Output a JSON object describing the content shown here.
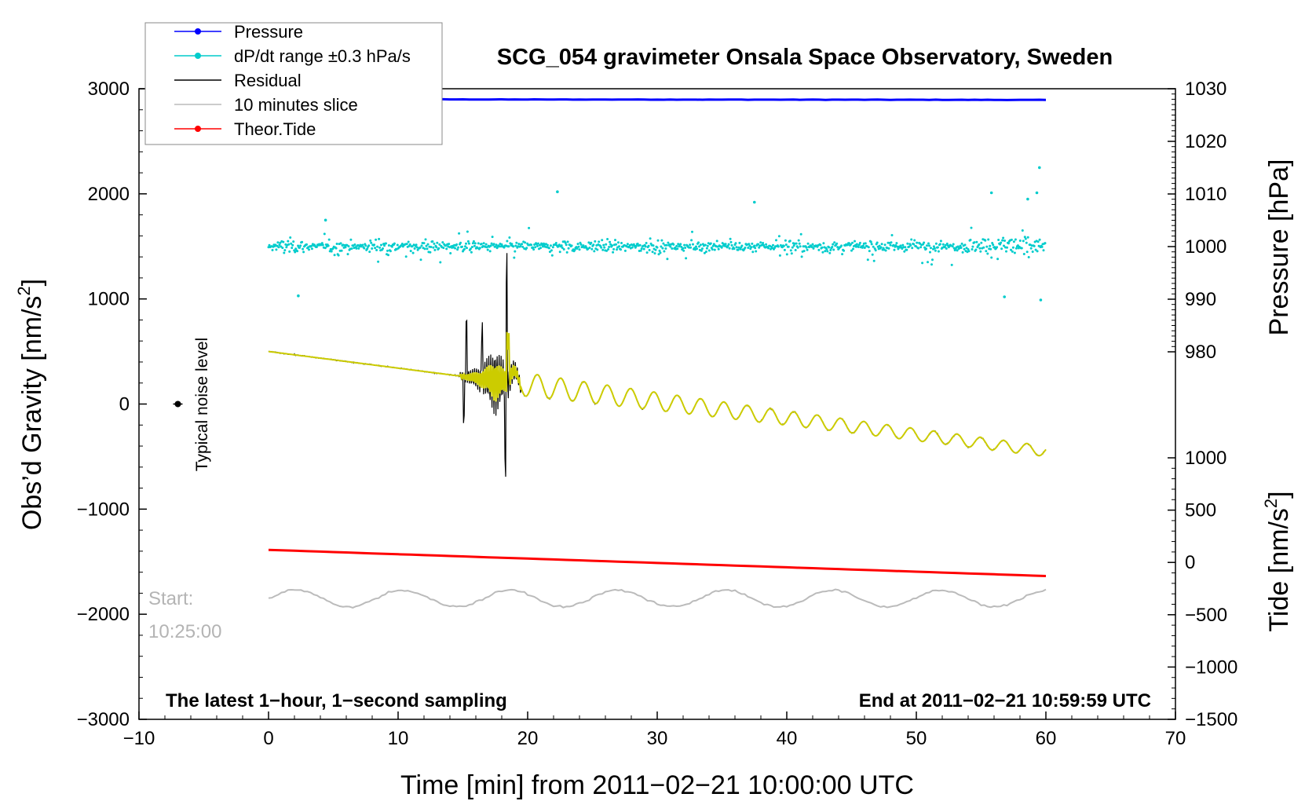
{
  "chart_data": {
    "type": "line",
    "title": "SCG_054 gravimeter Onsala Space Observatory, Sweden",
    "xlabel": "Time [min] from 2011−02−21 10:00:00 UTC",
    "ylabel_left": "Obs’d Gravity [nm/s",
    "ylabel_left_sup": "2",
    "ylabel_left_end": "]",
    "ylabel_right_pressure": "Pressure [hPa]",
    "ylabel_right_tide": "Tide [nm/s",
    "ylabel_right_tide_sup": "2",
    "ylabel_right_tide_end": "]",
    "xlim": [
      -10,
      70
    ],
    "ylim_left": [
      -3000,
      3000
    ],
    "pressure_axis": {
      "range": [
        980,
        1030
      ],
      "ticks": [
        1030,
        1020,
        1010,
        1000,
        990,
        980
      ]
    },
    "tide_axis": {
      "range": [
        -1500,
        1000
      ],
      "ticks": [
        1000,
        500,
        0,
        -500,
        -1000,
        -1500
      ]
    },
    "x_ticks": [
      -10,
      0,
      10,
      20,
      30,
      40,
      50,
      60,
      70
    ],
    "x_tick_labels": [
      "−10",
      "0",
      "10",
      "20",
      "30",
      "40",
      "50",
      "60",
      "70"
    ],
    "y_ticks": [
      3000,
      2000,
      1000,
      0,
      -1000,
      -2000,
      -3000
    ],
    "y_tick_labels": [
      "3000",
      "2000",
      "1000",
      "0",
      "−1000",
      "−2000",
      "−3000"
    ],
    "pressure_tick_labels": [
      "1030",
      "1020",
      "1010",
      "1000",
      "990",
      "980"
    ],
    "tide_tick_labels": [
      "1000",
      "500",
      "0",
      "−500",
      "−1000",
      "−1500"
    ],
    "series": [
      {
        "name": "Pressure",
        "color": "#0000ff",
        "axis": "pressure",
        "values": [
          1028,
          1028
        ],
        "x": [
          0,
          60
        ]
      },
      {
        "name": "dP/dt range ±0.3 hPa/s",
        "color": "#00cccc",
        "axis": "left",
        "center": 1500,
        "spread": 300
      },
      {
        "name": "Residual",
        "color": "#000000",
        "axis": "left",
        "start": 500,
        "end": -450
      },
      {
        "name": "10 minutes slice",
        "color": "#bbbbbb",
        "axis": "left",
        "center": -1850,
        "amplitude": 80
      },
      {
        "name": "Theor.Tide",
        "color": "#ff0000",
        "axis": "tide",
        "start": 120,
        "end": -130
      }
    ],
    "fit_color": "#cccc00",
    "noise_marker": {
      "x": -7,
      "y": 0,
      "label": "Typical noise level"
    },
    "start_label_line1": "Start:",
    "start_label_line2": "10:25:00",
    "footer_left": "The latest 1−hour, 1−second sampling",
    "footer_right": "End at 2011−02−21 10:59:59 UTC"
  }
}
